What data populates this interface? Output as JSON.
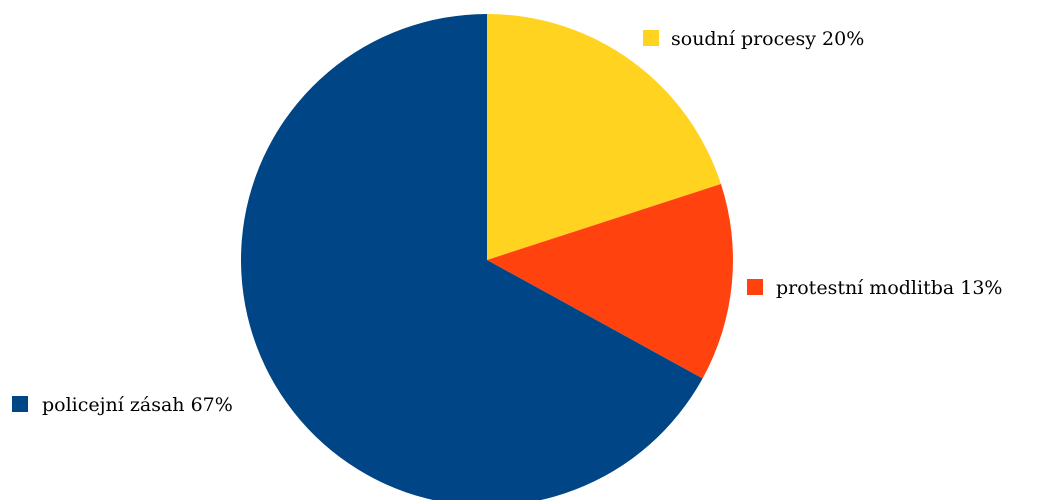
{
  "chart_data": {
    "type": "pie",
    "title": "",
    "start_angle_deg": 0,
    "direction": "clockwise",
    "slices": [
      {
        "label": "soudní procesy 20%",
        "value": 20,
        "color": "#ffd320"
      },
      {
        "label": "protestní modlitba 13%",
        "value": 13,
        "color": "#ff420e"
      },
      {
        "label": "policejní zásah 67%",
        "value": 67,
        "color": "#004586"
      }
    ]
  }
}
